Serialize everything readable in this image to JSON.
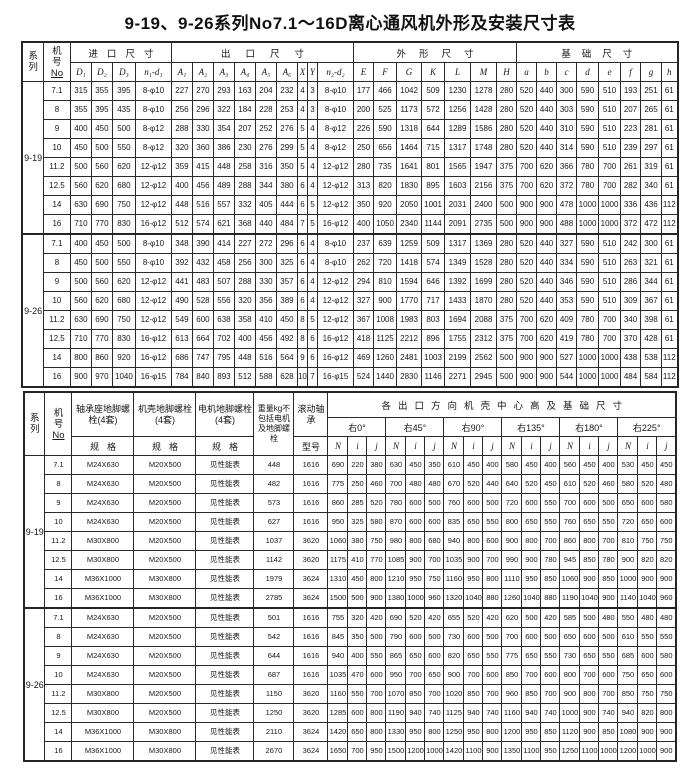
{
  "title": "9-19、9-26系列No7.1～16D离心通风机外形及安装尺寸表",
  "colors": {
    "ink": "#161616",
    "paper": "#ffffff"
  },
  "table1": {
    "series_header": "系列",
    "model_header": "机号No",
    "groups": [
      {
        "label": "进口尺寸",
        "cols": [
          "D₁",
          "D₂",
          "D₃",
          "n₁-d₁"
        ]
      },
      {
        "label": "出口尺寸",
        "cols": [
          "A₁",
          "A₂",
          "A₃",
          "A₄",
          "A₅",
          "A₆",
          "X",
          "Y",
          "n₂-d₂"
        ]
      },
      {
        "label": "外形尺寸",
        "cols": [
          "E",
          "F",
          "G",
          "K",
          "L",
          "M",
          "H"
        ]
      },
      {
        "label": "基础尺寸",
        "cols": [
          "a",
          "b",
          "c",
          "d",
          "e",
          "f",
          "g",
          "h"
        ]
      }
    ],
    "sections": [
      {
        "series": "9-19",
        "rows": [
          [
            "7.1",
            "315",
            "355",
            "395",
            "8-φ10",
            "227",
            "270",
            "293",
            "163",
            "204",
            "232",
            "4",
            "3",
            "8-φ10",
            "177",
            "466",
            "1042",
            "509",
            "1230",
            "1278",
            "280",
            "520",
            "440",
            "300",
            "590",
            "510",
            "193",
            "251",
            "61"
          ],
          [
            "8",
            "355",
            "395",
            "435",
            "8-φ10",
            "256",
            "296",
            "322",
            "184",
            "228",
            "253",
            "4",
            "3",
            "8-φ10",
            "200",
            "525",
            "1173",
            "572",
            "1256",
            "1428",
            "280",
            "520",
            "440",
            "303",
            "590",
            "510",
            "207",
            "265",
            "61"
          ],
          [
            "9",
            "400",
            "450",
            "500",
            "8-φ12",
            "288",
            "330",
            "354",
            "207",
            "252",
            "276",
            "5",
            "4",
            "8-φ12",
            "226",
            "590",
            "1318",
            "644",
            "1289",
            "1586",
            "280",
            "520",
            "440",
            "310",
            "590",
            "510",
            "223",
            "281",
            "61"
          ],
          [
            "10",
            "450",
            "500",
            "550",
            "8-φ12",
            "320",
            "360",
            "386",
            "230",
            "276",
            "299",
            "5",
            "4",
            "8-φ12",
            "250",
            "656",
            "1464",
            "715",
            "1317",
            "1748",
            "280",
            "520",
            "440",
            "314",
            "590",
            "510",
            "239",
            "297",
            "61"
          ],
          [
            "11.2",
            "500",
            "560",
            "620",
            "12-φ12",
            "359",
            "415",
            "448",
            "258",
            "316",
            "350",
            "5",
            "4",
            "12-φ12",
            "280",
            "735",
            "1641",
            "801",
            "1565",
            "1947",
            "375",
            "700",
            "620",
            "366",
            "780",
            "700",
            "261",
            "319",
            "61"
          ],
          [
            "12.5",
            "560",
            "620",
            "680",
            "12-φ12",
            "400",
            "456",
            "489",
            "288",
            "344",
            "380",
            "6",
            "4",
            "12-φ12",
            "313",
            "820",
            "1830",
            "895",
            "1603",
            "2156",
            "375",
            "700",
            "620",
            "372",
            "780",
            "700",
            "282",
            "340",
            "61"
          ],
          [
            "14",
            "630",
            "690",
            "750",
            "12-φ12",
            "448",
            "516",
            "557",
            "332",
            "405",
            "444",
            "6",
            "5",
            "12-φ12",
            "350",
            "920",
            "2050",
            "1001",
            "2031",
            "2400",
            "500",
            "900",
            "900",
            "478",
            "1000",
            "1000",
            "336",
            "436",
            "112"
          ],
          [
            "16",
            "710",
            "770",
            "830",
            "16-φ12",
            "512",
            "574",
            "621",
            "368",
            "440",
            "484",
            "7",
            "5",
            "16-φ12",
            "400",
            "1050",
            "2340",
            "1144",
            "2091",
            "2735",
            "500",
            "900",
            "900",
            "488",
            "1000",
            "1000",
            "372",
            "472",
            "112"
          ]
        ]
      },
      {
        "series": "9-26",
        "rows": [
          [
            "7.1",
            "400",
            "450",
            "500",
            "8-φ10",
            "348",
            "390",
            "414",
            "227",
            "272",
            "296",
            "6",
            "4",
            "8-φ10",
            "237",
            "639",
            "1259",
            "509",
            "1317",
            "1369",
            "280",
            "520",
            "440",
            "327",
            "590",
            "510",
            "242",
            "300",
            "61"
          ],
          [
            "8",
            "450",
            "500",
            "550",
            "8-φ10",
            "392",
            "432",
            "458",
            "256",
            "300",
            "325",
            "6",
            "4",
            "8-φ10",
            "262",
            "720",
            "1418",
            "574",
            "1349",
            "1528",
            "280",
            "520",
            "440",
            "334",
            "590",
            "510",
            "263",
            "321",
            "61"
          ],
          [
            "9",
            "500",
            "560",
            "620",
            "12-φ12",
            "441",
            "483",
            "507",
            "288",
            "330",
            "357",
            "6",
            "4",
            "12-φ12",
            "294",
            "810",
            "1594",
            "646",
            "1392",
            "1699",
            "280",
            "520",
            "440",
            "346",
            "590",
            "510",
            "286",
            "344",
            "61"
          ],
          [
            "10",
            "560",
            "620",
            "680",
            "12-φ12",
            "490",
            "528",
            "556",
            "320",
            "356",
            "389",
            "6",
            "4",
            "12-φ12",
            "327",
            "900",
            "1770",
            "717",
            "1433",
            "1870",
            "280",
            "520",
            "440",
            "353",
            "590",
            "510",
            "309",
            "367",
            "61"
          ],
          [
            "11.2",
            "630",
            "690",
            "750",
            "12-φ12",
            "549",
            "600",
            "638",
            "358",
            "410",
            "450",
            "8",
            "5",
            "12-φ12",
            "367",
            "1008",
            "1983",
            "803",
            "1694",
            "2088",
            "375",
            "700",
            "620",
            "409",
            "780",
            "700",
            "340",
            "398",
            "61"
          ],
          [
            "12.5",
            "710",
            "770",
            "830",
            "16-φ12",
            "613",
            "664",
            "702",
            "400",
            "456",
            "492",
            "8",
            "6",
            "16-φ12",
            "418",
            "1125",
            "2212",
            "896",
            "1755",
            "2312",
            "375",
            "700",
            "620",
            "419",
            "780",
            "700",
            "370",
            "428",
            "61"
          ],
          [
            "14",
            "800",
            "860",
            "920",
            "16-φ12",
            "686",
            "747",
            "795",
            "448",
            "516",
            "564",
            "9",
            "6",
            "16-φ12",
            "469",
            "1260",
            "2481",
            "1003",
            "2199",
            "2562",
            "500",
            "900",
            "900",
            "527",
            "1000",
            "1000",
            "438",
            "538",
            "112"
          ],
          [
            "16",
            "900",
            "970",
            "1040",
            "16-φ15",
            "784",
            "840",
            "893",
            "512",
            "588",
            "628",
            "10",
            "7",
            "16-φ15",
            "524",
            "1440",
            "2830",
            "1146",
            "2271",
            "2945",
            "500",
            "900",
            "900",
            "544",
            "1000",
            "1000",
            "484",
            "584",
            "112"
          ]
        ]
      }
    ]
  },
  "table2": {
    "series_header": "系列",
    "model_header": "机号No",
    "bolt_groups": [
      {
        "label": "轴承座地脚螺栓(4套)",
        "sub": "规格"
      },
      {
        "label": "机壳地脚螺栓(4套)",
        "sub": "规格"
      },
      {
        "label": "电机地脚螺栓(4套)",
        "sub": "规格"
      }
    ],
    "weight_header": "重量kg不包括电机及地脚螺栓",
    "bearing_header": {
      "label": "滚动轴承",
      "sub": "型号"
    },
    "direction_header": "各出口方向机壳中心高及基础尺寸",
    "angles": [
      "右0°",
      "右45°",
      "右90°",
      "右135°",
      "右180°",
      "右225°"
    ],
    "angle_subcols": [
      "N",
      "i",
      "j"
    ],
    "sections": [
      {
        "series": "9-19",
        "rows": [
          [
            "7.1",
            "M24X630",
            "M20X500",
            "见性能表",
            "448",
            "1616",
            "690",
            "220",
            "380",
            "630",
            "450",
            "350",
            "610",
            "450",
            "400",
            "580",
            "450",
            "400",
            "560",
            "450",
            "400",
            "530",
            "450",
            "450"
          ],
          [
            "8",
            "M24X630",
            "M20X500",
            "见性能表",
            "482",
            "1616",
            "775",
            "250",
            "460",
            "700",
            "480",
            "480",
            "670",
            "520",
            "440",
            "640",
            "520",
            "450",
            "610",
            "520",
            "460",
            "580",
            "520",
            "480"
          ],
          [
            "9",
            "M24X630",
            "M20X500",
            "见性能表",
            "573",
            "1616",
            "860",
            "285",
            "520",
            "780",
            "600",
            "500",
            "760",
            "600",
            "500",
            "720",
            "600",
            "550",
            "700",
            "600",
            "500",
            "650",
            "600",
            "580"
          ],
          [
            "10",
            "M24X630",
            "M20X500",
            "见性能表",
            "627",
            "1616",
            "950",
            "325",
            "580",
            "870",
            "600",
            "600",
            "835",
            "650",
            "550",
            "800",
            "650",
            "550",
            "760",
            "650",
            "550",
            "720",
            "650",
            "600"
          ],
          [
            "11.2",
            "M30X800",
            "M20X500",
            "见性能表",
            "1037",
            "3620",
            "1060",
            "380",
            "750",
            "980",
            "800",
            "680",
            "940",
            "800",
            "600",
            "900",
            "800",
            "700",
            "860",
            "800",
            "700",
            "810",
            "750",
            "750"
          ],
          [
            "12.5",
            "M30X800",
            "M20X500",
            "见性能表",
            "1142",
            "3620",
            "1175",
            "410",
            "770",
            "1085",
            "900",
            "700",
            "1035",
            "900",
            "700",
            "990",
            "900",
            "780",
            "945",
            "850",
            "780",
            "900",
            "820",
            "820"
          ],
          [
            "14",
            "M36X1000",
            "M30X800",
            "见性能表",
            "1979",
            "3624",
            "1310",
            "450",
            "800",
            "1210",
            "950",
            "750",
            "1160",
            "950",
            "800",
            "1110",
            "950",
            "850",
            "1060",
            "900",
            "850",
            "1000",
            "900",
            "900"
          ],
          [
            "16",
            "M36X1000",
            "M30X800",
            "见性能表",
            "2785",
            "3624",
            "1500",
            "500",
            "900",
            "1380",
            "1000",
            "960",
            "1320",
            "1040",
            "880",
            "1260",
            "1040",
            "880",
            "1190",
            "1040",
            "900",
            "1140",
            "1040",
            "960"
          ]
        ]
      },
      {
        "series": "9-26",
        "rows": [
          [
            "7.1",
            "M24X630",
            "M20X500",
            "见性能表",
            "501",
            "1616",
            "755",
            "320",
            "420",
            "690",
            "520",
            "420",
            "655",
            "520",
            "420",
            "620",
            "500",
            "420",
            "585",
            "500",
            "480",
            "550",
            "480",
            "480"
          ],
          [
            "8",
            "M24X630",
            "M20X500",
            "见性能表",
            "542",
            "1616",
            "845",
            "350",
            "500",
            "790",
            "600",
            "500",
            "730",
            "600",
            "500",
            "700",
            "600",
            "500",
            "650",
            "600",
            "500",
            "610",
            "550",
            "550"
          ],
          [
            "9",
            "M24X630",
            "M20X500",
            "见性能表",
            "644",
            "1616",
            "940",
            "400",
            "550",
            "865",
            "650",
            "600",
            "820",
            "650",
            "550",
            "775",
            "650",
            "550",
            "730",
            "650",
            "550",
            "685",
            "600",
            "580"
          ],
          [
            "10",
            "M24X630",
            "M20X500",
            "见性能表",
            "687",
            "1616",
            "1035",
            "470",
            "600",
            "950",
            "700",
            "650",
            "900",
            "700",
            "600",
            "850",
            "700",
            "600",
            "800",
            "700",
            "600",
            "750",
            "650",
            "600"
          ],
          [
            "11.2",
            "M30X800",
            "M20X500",
            "见性能表",
            "1150",
            "3620",
            "1160",
            "550",
            "700",
            "1070",
            "850",
            "700",
            "1020",
            "850",
            "700",
            "960",
            "850",
            "700",
            "900",
            "800",
            "700",
            "850",
            "750",
            "750"
          ],
          [
            "12.5",
            "M30X800",
            "M20X500",
            "见性能表",
            "1250",
            "3620",
            "1285",
            "600",
            "800",
            "1190",
            "940",
            "740",
            "1125",
            "940",
            "740",
            "1160",
            "940",
            "740",
            "1000",
            "900",
            "740",
            "940",
            "820",
            "800"
          ],
          [
            "14",
            "M36X1000",
            "M30X800",
            "见性能表",
            "2110",
            "3624",
            "1420",
            "650",
            "800",
            "1330",
            "950",
            "800",
            "1250",
            "950",
            "800",
            "1200",
            "950",
            "850",
            "1120",
            "900",
            "850",
            "1080",
            "900",
            "900"
          ],
          [
            "16",
            "M36X1000",
            "M30X800",
            "见性能表",
            "2670",
            "3624",
            "1650",
            "700",
            "950",
            "1500",
            "1200",
            "1000",
            "1420",
            "1100",
            "900",
            "1350",
            "1100",
            "950",
            "1250",
            "1100",
            "1000",
            "1200",
            "1000",
            "900"
          ]
        ]
      }
    ]
  }
}
